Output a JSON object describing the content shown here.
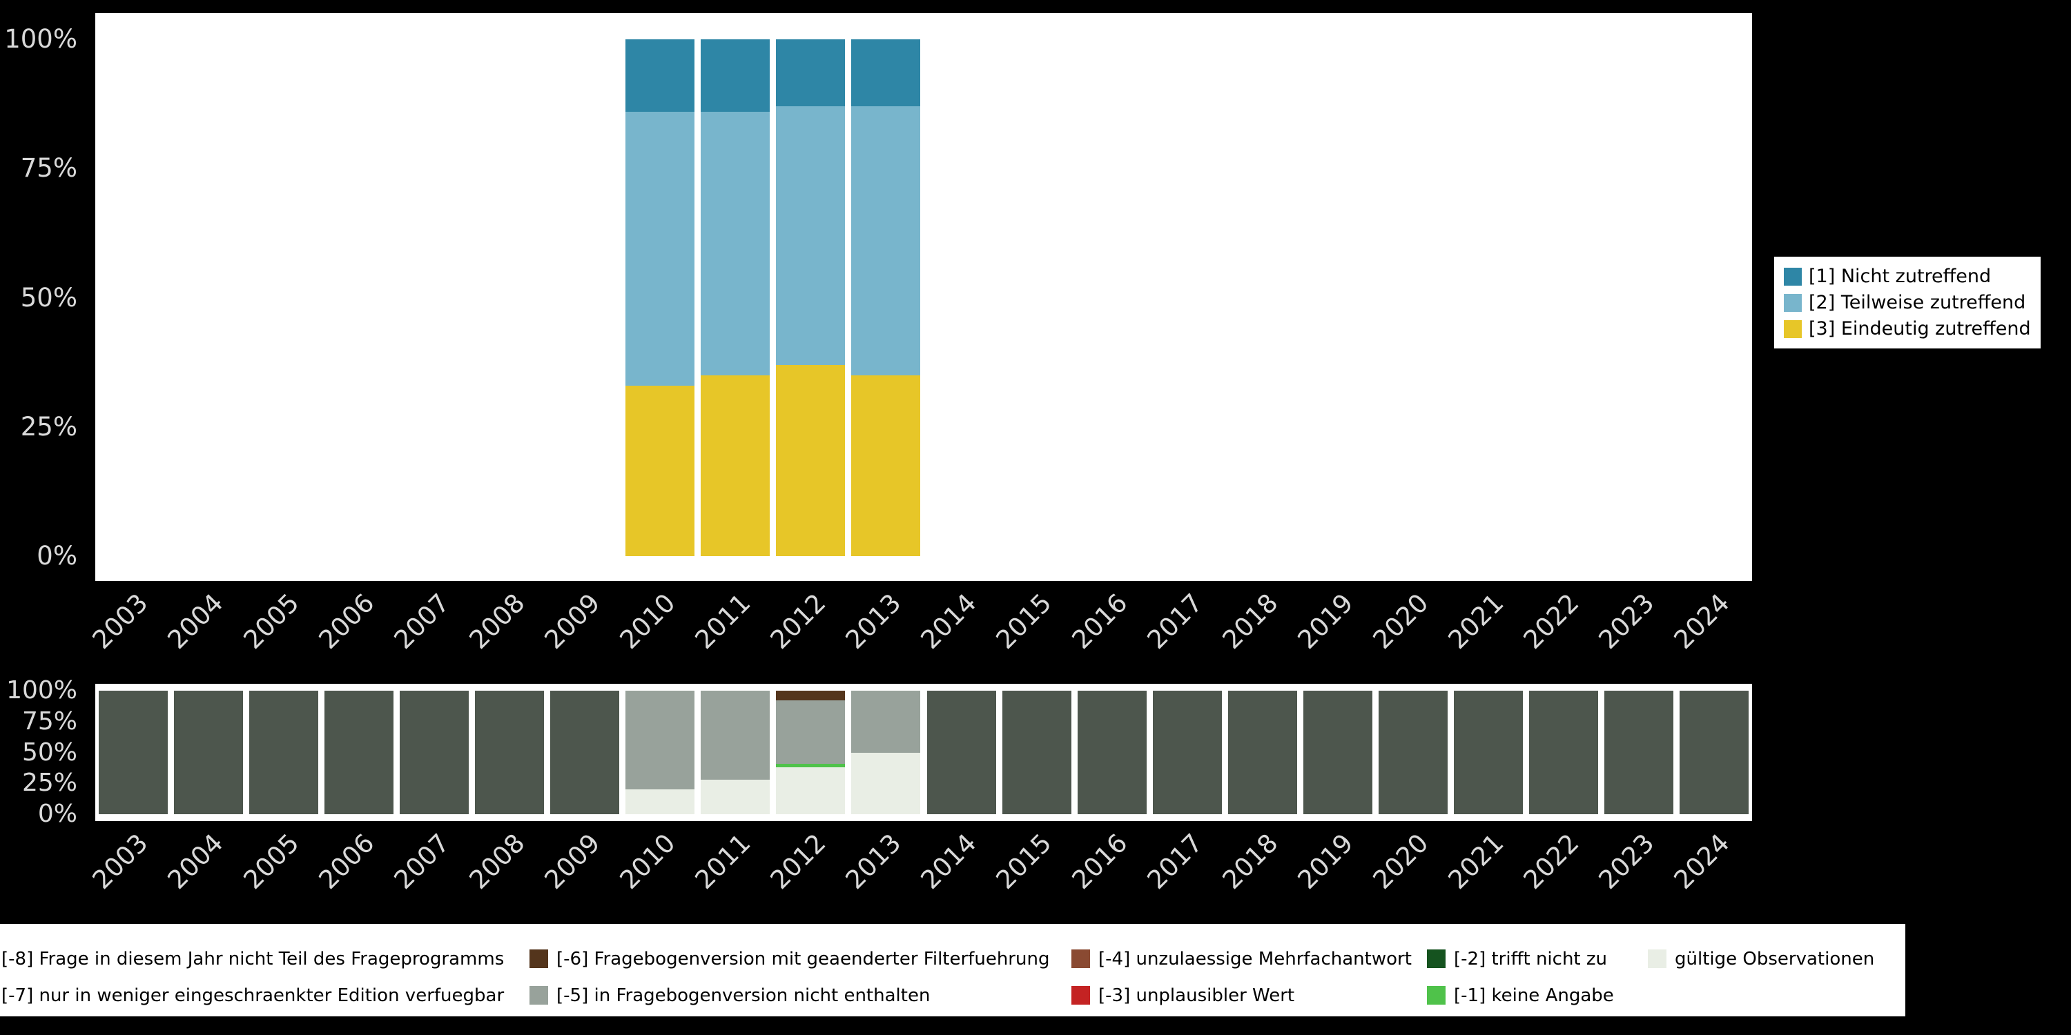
{
  "page": {
    "background": "#000000",
    "axis_label_color": "#d9d9d9"
  },
  "chart_data": [
    {
      "id": "top-frequency-chart",
      "type": "bar",
      "stacked": true,
      "units": "percent",
      "title": "",
      "xlabel": "",
      "ylabel": "",
      "ylim": [
        0,
        100
      ],
      "grid": false,
      "categories": [
        "2003",
        "2004",
        "2005",
        "2006",
        "2007",
        "2008",
        "2009",
        "2010",
        "2011",
        "2012",
        "2013",
        "2014",
        "2015",
        "2016",
        "2017",
        "2018",
        "2019",
        "2020",
        "2021",
        "2022",
        "2023",
        "2024"
      ],
      "yticks": [
        {
          "label": "0%",
          "value": 0
        },
        {
          "label": "25%",
          "value": 25
        },
        {
          "label": "50%",
          "value": 50
        },
        {
          "label": "75%",
          "value": 75
        },
        {
          "label": "100%",
          "value": 100
        }
      ],
      "series": [
        {
          "name": "[3] Eindeutig zutreffend",
          "color": "#e7c628",
          "values": [
            0,
            0,
            0,
            0,
            0,
            0,
            0,
            33,
            35,
            37,
            35,
            0,
            0,
            0,
            0,
            0,
            0,
            0,
            0,
            0,
            0,
            0
          ]
        },
        {
          "name": "[2] Teilweise zutreffend",
          "color": "#78b5cc",
          "values": [
            0,
            0,
            0,
            0,
            0,
            0,
            0,
            53,
            51,
            50,
            52,
            0,
            0,
            0,
            0,
            0,
            0,
            0,
            0,
            0,
            0,
            0
          ]
        },
        {
          "name": "[1] Nicht zutreffend",
          "color": "#2e86a6",
          "values": [
            0,
            0,
            0,
            0,
            0,
            0,
            0,
            14,
            14,
            13,
            13,
            0,
            0,
            0,
            0,
            0,
            0,
            0,
            0,
            0,
            0,
            0
          ]
        }
      ],
      "legend": {
        "position": "right",
        "items": [
          {
            "label": "[1] Nicht zutreffend",
            "color": "#2e86a6"
          },
          {
            "label": "[2] Teilweise zutreffend",
            "color": "#78b5cc"
          },
          {
            "label": "[3] Eindeutig zutreffend",
            "color": "#e7c628"
          }
        ]
      }
    },
    {
      "id": "bottom-missings-chart",
      "type": "bar",
      "stacked": true,
      "units": "percent",
      "title": "",
      "xlabel": "",
      "ylabel": "",
      "ylim": [
        0,
        100
      ],
      "grid": false,
      "categories": [
        "2003",
        "2004",
        "2005",
        "2006",
        "2007",
        "2008",
        "2009",
        "2010",
        "2011",
        "2012",
        "2013",
        "2014",
        "2015",
        "2016",
        "2017",
        "2018",
        "2019",
        "2020",
        "2021",
        "2022",
        "2023",
        "2024"
      ],
      "yticks": [
        {
          "label": "0%",
          "value": 0
        },
        {
          "label": "25%",
          "value": 25
        },
        {
          "label": "50%",
          "value": 50
        },
        {
          "label": "75%",
          "value": 75
        },
        {
          "label": "100%",
          "value": 100
        }
      ],
      "series": [
        {
          "name": "gültige Observationen",
          "color": "#e9eee5",
          "values": [
            0,
            0,
            0,
            0,
            0,
            0,
            0,
            20,
            28,
            38,
            50,
            0,
            0,
            0,
            0,
            0,
            0,
            0,
            0,
            0,
            0,
            0
          ]
        },
        {
          "name": "[-1] keine Angabe",
          "color": "#4fc24a",
          "values": [
            0,
            0,
            0,
            0,
            0,
            0,
            0,
            0,
            0,
            3,
            0,
            0,
            0,
            0,
            0,
            0,
            0,
            0,
            0,
            0,
            0,
            0
          ]
        },
        {
          "name": "[-5] in Fragebogenversion nicht enthalten",
          "color": "#98a29b",
          "values": [
            0,
            0,
            0,
            0,
            0,
            0,
            0,
            80,
            72,
            51,
            50,
            0,
            0,
            0,
            0,
            0,
            0,
            0,
            0,
            0,
            0,
            0
          ]
        },
        {
          "name": "[-6] Fragebogenversion mit geaenderter Filterfuehrung",
          "color": "#54351c",
          "values": [
            0,
            0,
            0,
            0,
            0,
            0,
            0,
            0,
            0,
            8,
            0,
            0,
            0,
            0,
            0,
            0,
            0,
            0,
            0,
            0,
            0,
            0
          ]
        },
        {
          "name": "[-8] Frage in diesem Jahr nicht Teil des Frageprogramms",
          "color": "#4d564d",
          "values": [
            100,
            100,
            100,
            100,
            100,
            100,
            100,
            0,
            0,
            0,
            0,
            100,
            100,
            100,
            100,
            100,
            100,
            100,
            100,
            100,
            100,
            100
          ]
        }
      ],
      "legend": {
        "position": "bottom",
        "items": [
          {
            "label": "[-8] Frage in diesem Jahr nicht Teil des Frageprogramms",
            "color": "#4d564d"
          },
          {
            "label": "[-6] Fragebogenversion mit geaenderter Filterfuehrung",
            "color": "#54351c"
          },
          {
            "label": "[-4] unzulaessige Mehrfachantwort",
            "color": "#8a4a32"
          },
          {
            "label": "[-2] trifft nicht zu",
            "color": "#15531f"
          },
          {
            "label": "gültige Observationen",
            "color": "#e9eee5"
          },
          {
            "label": "[-7] nur in weniger eingeschraenkter Edition verfuegbar",
            "color": "#8a938a"
          },
          {
            "label": "[-5] in Fragebogenversion nicht enthalten",
            "color": "#98a29b"
          },
          {
            "label": "[-3] unplausibler Wert",
            "color": "#c42323"
          },
          {
            "label": "[-1] keine Angabe",
            "color": "#4fc24a"
          }
        ]
      }
    }
  ]
}
